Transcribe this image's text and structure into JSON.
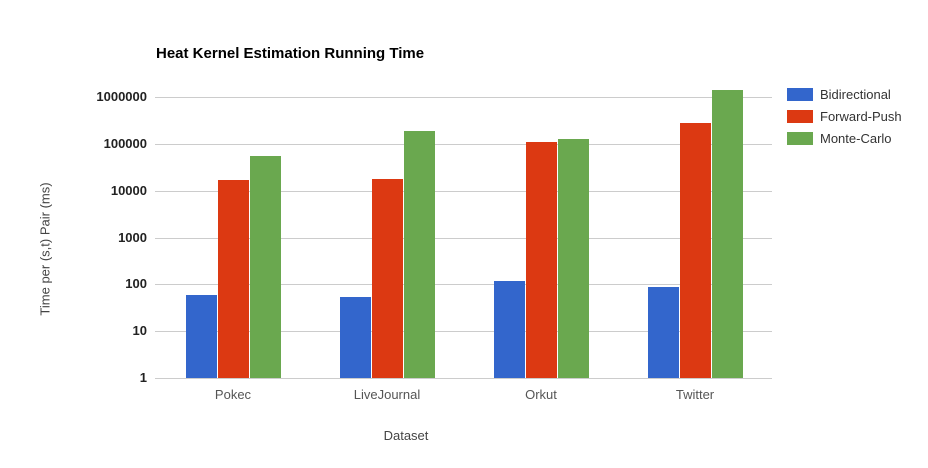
{
  "chart_data": {
    "type": "bar",
    "title": "Heat Kernel Estimation Running Time",
    "xlabel": "Dataset",
    "ylabel": "Time per (s,t) Pair (ms)",
    "categories": [
      "Pokec",
      "LiveJournal",
      "Orkut",
      "Twitter"
    ],
    "series": [
      {
        "name": "Bidirectional",
        "color": "#3366CC",
        "values": [
          60,
          55,
          120,
          90
        ]
      },
      {
        "name": "Forward-Push",
        "color": "#DC3912",
        "values": [
          17000,
          18000,
          112000,
          280000
        ]
      },
      {
        "name": "Monte-Carlo",
        "color": "#6AA84F",
        "values": [
          56000,
          185000,
          126000,
          1400000
        ]
      }
    ],
    "yscale": "log",
    "ylim": [
      1,
      1800000
    ],
    "ytick_labels": [
      "1",
      "10",
      "100",
      "1000",
      "10000",
      "100000",
      "1000000"
    ],
    "grid": true,
    "legend_position": "right",
    "background_color": "#FFFFFF",
    "gridline_color": "#CCCCCC"
  }
}
